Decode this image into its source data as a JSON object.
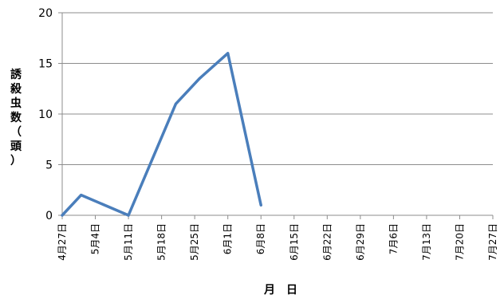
{
  "chart_data": {
    "type": "line",
    "title": "",
    "xlabel": "月　日",
    "ylabel": "誘殺虫数（頭）",
    "categories": [
      "4月27日",
      "5月4日",
      "5月11日",
      "5月18日",
      "5月25日",
      "6月1日",
      "6月8日",
      "6月15日",
      "6月22日",
      "6月29日",
      "7月6日",
      "7月13日",
      "7月20日",
      "7月27日"
    ],
    "x": [
      "4月27日",
      "5月1日",
      "5月11日",
      "5月21日",
      "5月26日",
      "6月1日",
      "6月8日"
    ],
    "series": [
      {
        "values": [
          0,
          2,
          0,
          11,
          13.5,
          16,
          1
        ],
        "color": "#4a7ebb"
      }
    ],
    "ylim": [
      0,
      20
    ],
    "yticks": [
      0,
      5,
      10,
      15,
      20
    ],
    "grid": "horizontal",
    "legend": "none"
  }
}
